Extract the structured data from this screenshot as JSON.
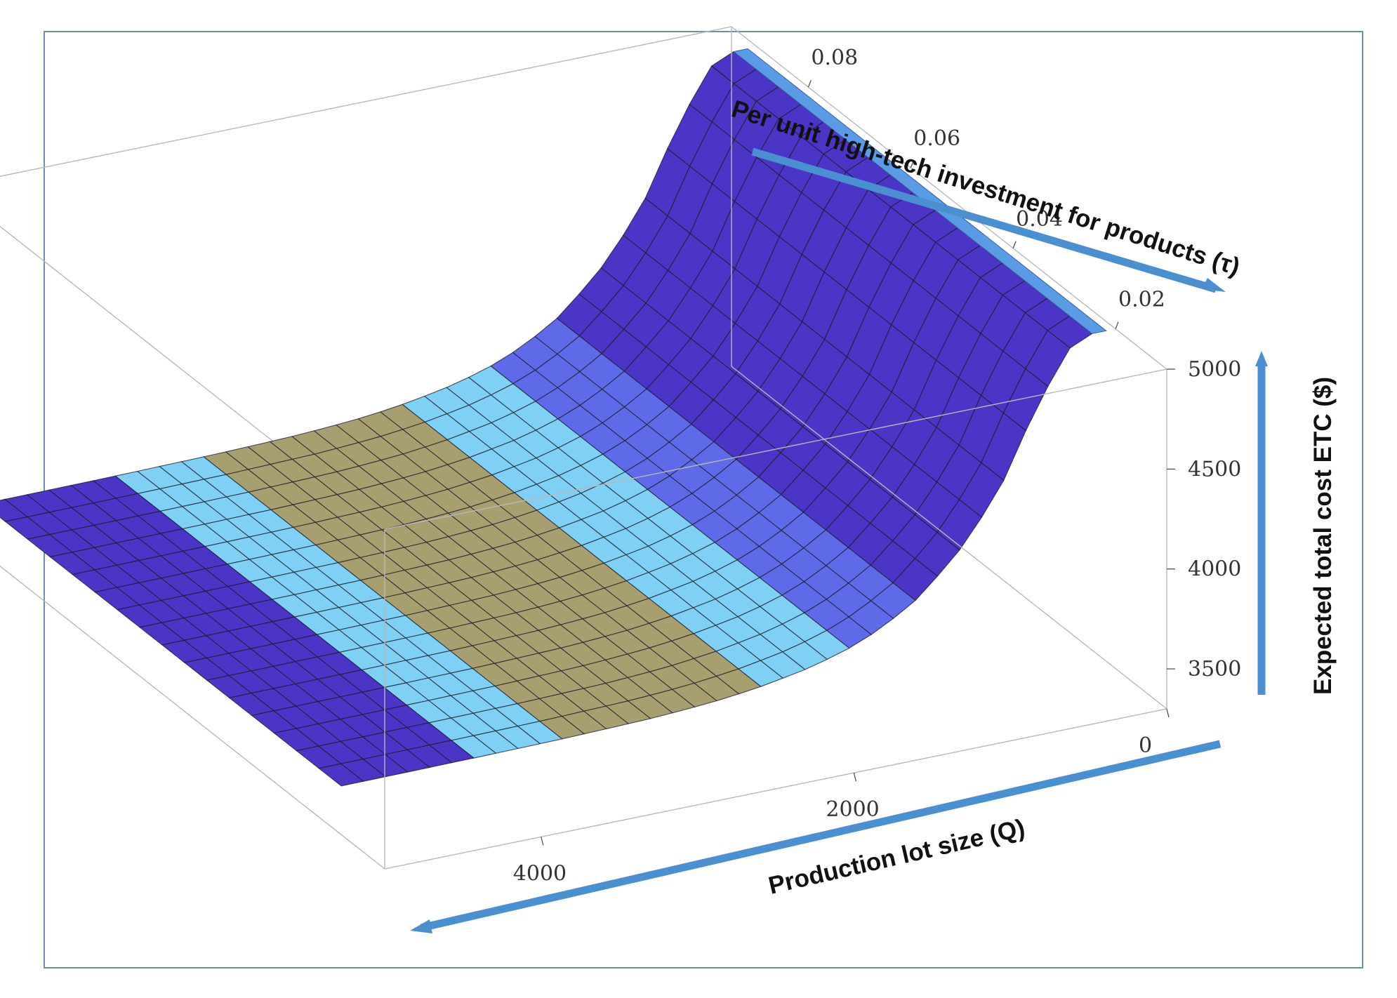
{
  "chart_data": {
    "type": "surface3d",
    "title": "",
    "x_axis": {
      "label": "Per unit high-tech investment for products (τ)",
      "ticks": [
        "0.02",
        "0.04",
        "0.06",
        "0.08"
      ],
      "tick_values": [
        0.02,
        0.04,
        0.06,
        0.08
      ],
      "range": [
        0.01,
        0.095
      ]
    },
    "y_axis": {
      "label": "Production lot size (Q)",
      "ticks": [
        "0",
        "2000",
        "4000"
      ],
      "tick_values": [
        0,
        2000,
        4000
      ],
      "range": [
        0,
        5000
      ]
    },
    "z_axis": {
      "label": "Expected total cost ETC ($)",
      "ticks": [
        "3500",
        "4000",
        "4500",
        "5000"
      ],
      "tick_values": [
        3500,
        4000,
        4500,
        5000
      ],
      "range": [
        3300,
        5000
      ]
    },
    "q_samples": [
      250,
      500,
      750,
      1000,
      1250,
      1500,
      1750,
      2000,
      2250,
      2500,
      2750,
      3000,
      3500,
      4000,
      4500,
      5000
    ],
    "etc_samples": [
      5000,
      4700,
      4300,
      4050,
      3860,
      3740,
      3660,
      3610,
      3575,
      3550,
      3535,
      3525,
      3515,
      3510,
      3507,
      3505
    ],
    "colormap": [
      "#4a35c6",
      "#5f6ae8",
      "#7fd0f4",
      "#a89f70"
    ],
    "colors": {
      "arrow": "#4a90d0",
      "frame": "#6b8fb3"
    }
  }
}
